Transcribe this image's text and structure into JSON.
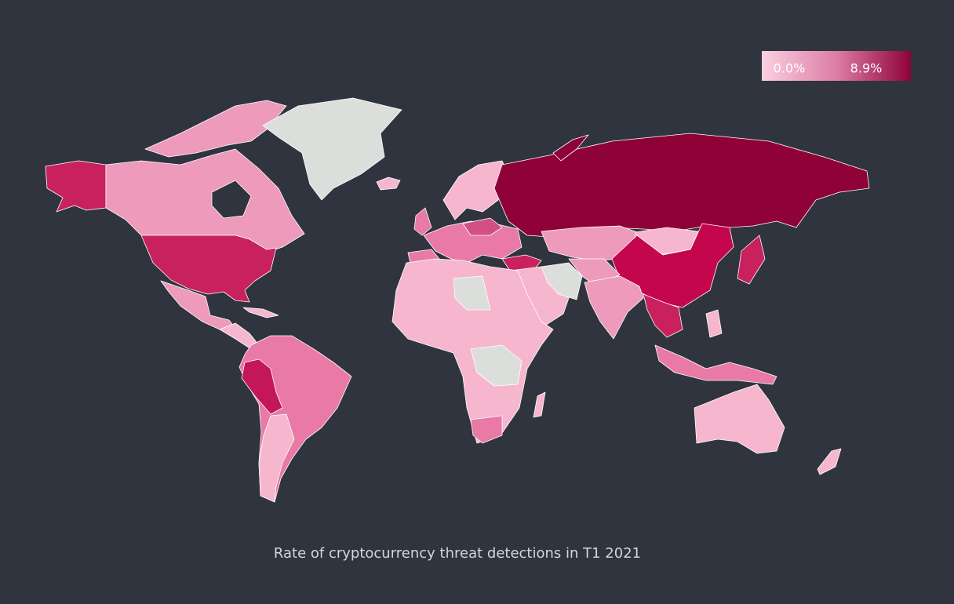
{
  "legend": {
    "min_label": "0.0%",
    "max_label": "8.9%"
  },
  "caption": "Rate of cryptocurrency threat detections in T1 2021"
}
